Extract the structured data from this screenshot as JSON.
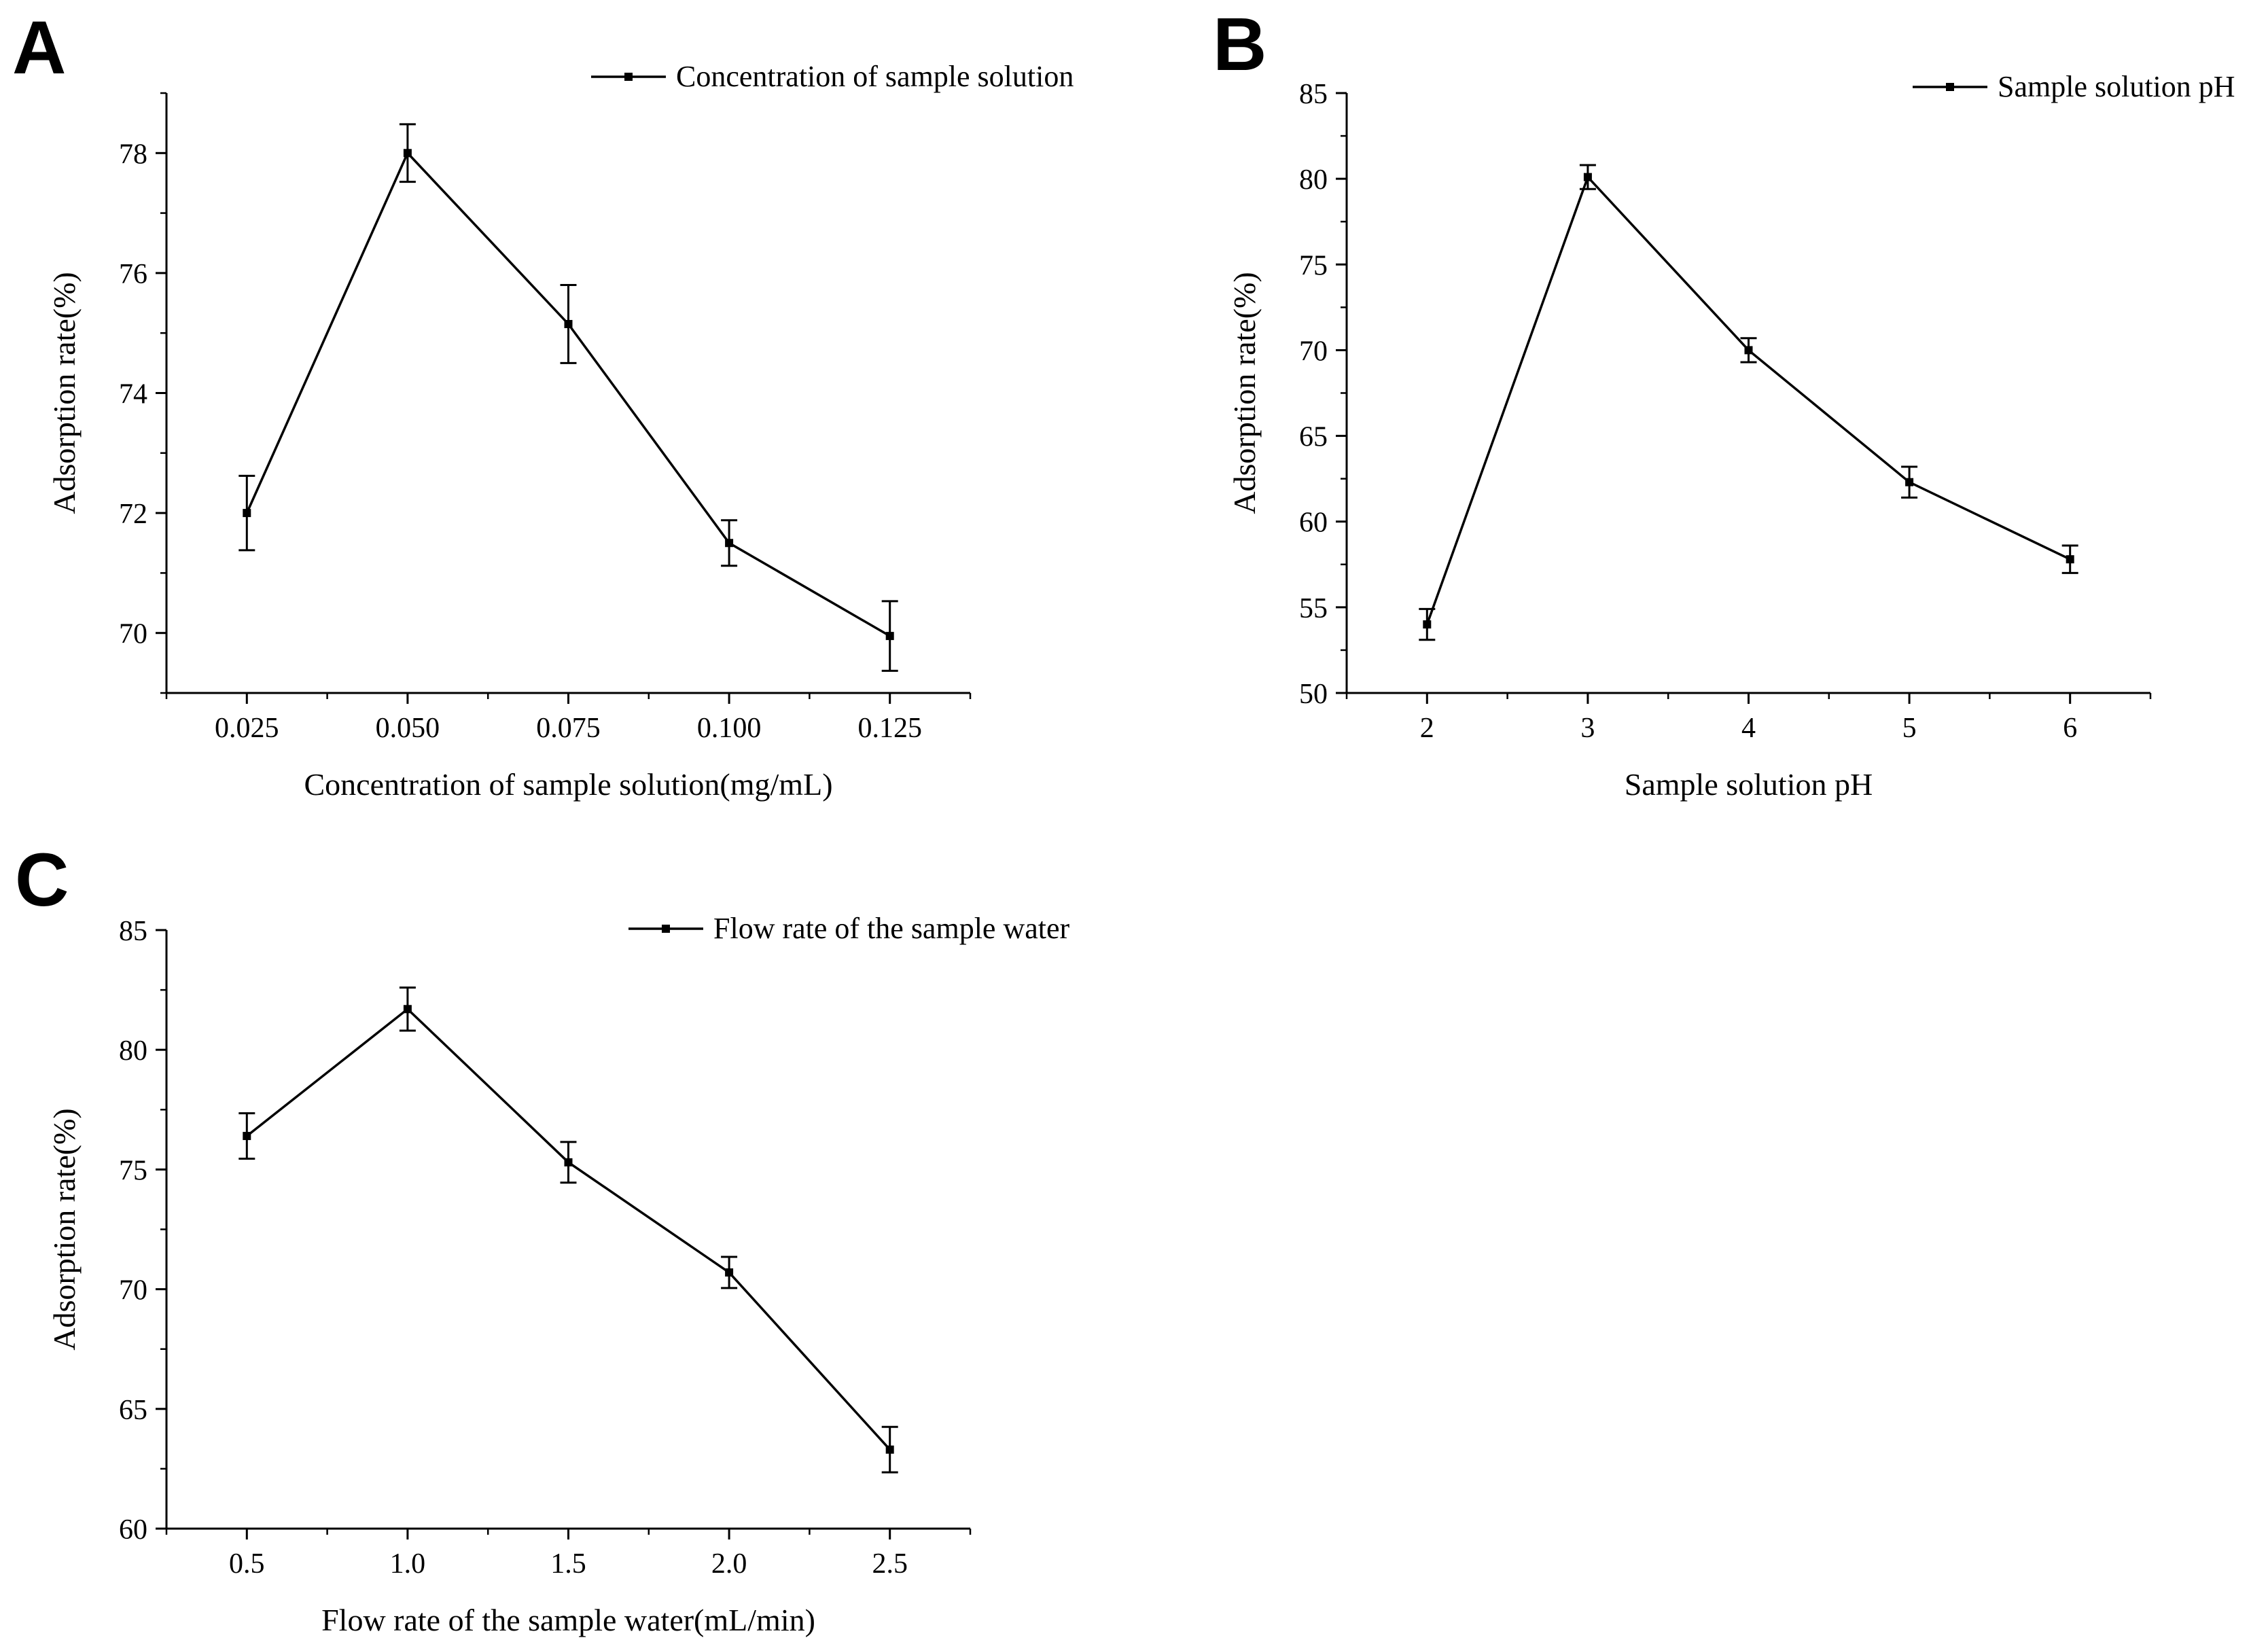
{
  "figure": {
    "background": "#ffffff",
    "line_color": "#000000"
  },
  "chart_data": [
    {
      "panel": "A",
      "type": "line",
      "xlabel": "Concentration of sample solution(mg/mL)",
      "ylabel": "Adsorption rate(%)",
      "legend": "Concentration of sample solution",
      "legend_position": "top-right",
      "xlim": [
        0.0125,
        0.1375
      ],
      "ylim": [
        69,
        79
      ],
      "xticks": [
        0.025,
        0.05,
        0.075,
        0.1,
        0.125
      ],
      "xtick_labels": [
        "0.025",
        "0.050",
        "0.075",
        "0.100",
        "0.125"
      ],
      "yticks": [
        70,
        72,
        74,
        76,
        78
      ],
      "ytick_labels": [
        "70",
        "72",
        "74",
        "76",
        "78"
      ],
      "x": [
        0.025,
        0.05,
        0.075,
        0.1,
        0.125
      ],
      "y": [
        72.0,
        78.0,
        75.15,
        71.5,
        69.95
      ],
      "err": [
        0.62,
        0.48,
        0.65,
        0.38,
        0.58
      ]
    },
    {
      "panel": "B",
      "type": "line",
      "xlabel": "Sample solution pH",
      "ylabel": "Adsorption rate(%)",
      "legend": "Sample solution pH",
      "legend_position": "top-right",
      "xlim": [
        1.5,
        6.5
      ],
      "ylim": [
        50,
        85
      ],
      "xticks": [
        2,
        3,
        4,
        5,
        6
      ],
      "xtick_labels": [
        "2",
        "3",
        "4",
        "5",
        "6"
      ],
      "yticks": [
        50,
        55,
        60,
        65,
        70,
        75,
        80,
        85
      ],
      "ytick_labels": [
        "50",
        "55",
        "60",
        "65",
        "70",
        "75",
        "80",
        "85"
      ],
      "x": [
        2,
        3,
        4,
        5,
        6
      ],
      "y": [
        54.0,
        80.1,
        70.0,
        62.3,
        57.8
      ],
      "err": [
        0.9,
        0.7,
        0.7,
        0.9,
        0.8
      ]
    },
    {
      "panel": "C",
      "type": "line",
      "xlabel": "Flow rate of the sample water(mL/min)",
      "ylabel": "Adsorption rate(%)",
      "legend": "Flow rate of the sample water",
      "legend_position": "top-right",
      "xlim": [
        0.25,
        2.75
      ],
      "ylim": [
        60,
        85
      ],
      "xticks": [
        0.5,
        1.0,
        1.5,
        2.0,
        2.5
      ],
      "xtick_labels": [
        "0.5",
        "1.0",
        "1.5",
        "2.0",
        "2.5"
      ],
      "yticks": [
        60,
        65,
        70,
        75,
        80,
        85
      ],
      "ytick_labels": [
        "60",
        "65",
        "70",
        "75",
        "80",
        "85"
      ],
      "x": [
        0.5,
        1.0,
        1.5,
        2.0,
        2.5
      ],
      "y": [
        76.4,
        81.7,
        75.3,
        70.7,
        63.3
      ],
      "err": [
        0.95,
        0.9,
        0.85,
        0.65,
        0.95
      ]
    }
  ]
}
